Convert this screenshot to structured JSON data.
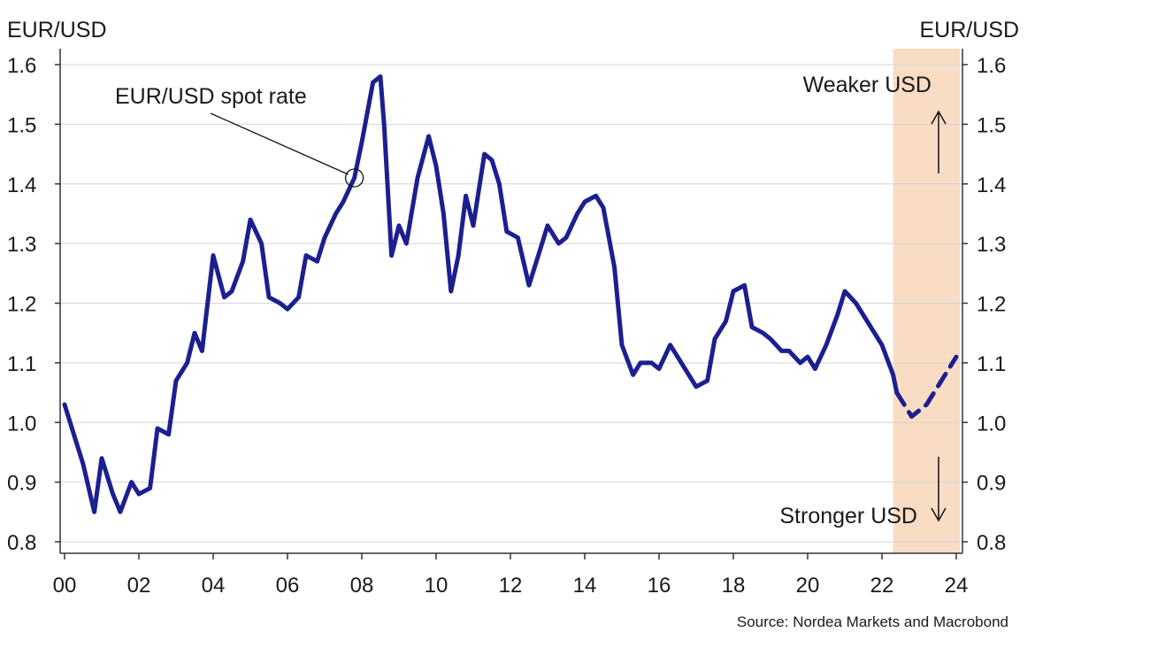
{
  "chart_data": {
    "type": "line",
    "ylabel_left": "EUR/USD",
    "ylabel_right": "EUR/USD",
    "ylim": [
      0.78,
      1.6
    ],
    "xlim": [
      2000,
      2024.1
    ],
    "y_ticks": [
      "0.8",
      "0.9",
      "1.0",
      "1.1",
      "1.2",
      "1.3",
      "1.4",
      "1.5",
      "1.6"
    ],
    "x_ticks": [
      "00",
      "02",
      "04",
      "06",
      "08",
      "10",
      "12",
      "14",
      "16",
      "18",
      "20",
      "22",
      "24"
    ],
    "grid": "horizontal",
    "forecast_shading": {
      "from": 2022.3,
      "to": 2024.1,
      "color": "#f8dcc4"
    },
    "series": [
      {
        "name": "EUR/USD spot rate",
        "style": "solid",
        "color": "#1c1f8f",
        "points": [
          [
            2000.0,
            1.03
          ],
          [
            2000.3,
            0.97
          ],
          [
            2000.5,
            0.93
          ],
          [
            2000.8,
            0.85
          ],
          [
            2001.0,
            0.94
          ],
          [
            2001.3,
            0.88
          ],
          [
            2001.5,
            0.85
          ],
          [
            2001.8,
            0.9
          ],
          [
            2002.0,
            0.88
          ],
          [
            2002.3,
            0.89
          ],
          [
            2002.5,
            0.99
          ],
          [
            2002.8,
            0.98
          ],
          [
            2003.0,
            1.07
          ],
          [
            2003.3,
            1.1
          ],
          [
            2003.5,
            1.15
          ],
          [
            2003.7,
            1.12
          ],
          [
            2004.0,
            1.28
          ],
          [
            2004.3,
            1.21
          ],
          [
            2004.5,
            1.22
          ],
          [
            2004.8,
            1.27
          ],
          [
            2005.0,
            1.34
          ],
          [
            2005.3,
            1.3
          ],
          [
            2005.5,
            1.21
          ],
          [
            2005.8,
            1.2
          ],
          [
            2006.0,
            1.19
          ],
          [
            2006.3,
            1.21
          ],
          [
            2006.5,
            1.28
          ],
          [
            2006.8,
            1.27
          ],
          [
            2007.0,
            1.31
          ],
          [
            2007.3,
            1.35
          ],
          [
            2007.5,
            1.37
          ],
          [
            2007.8,
            1.41
          ],
          [
            2008.0,
            1.47
          ],
          [
            2008.3,
            1.57
          ],
          [
            2008.5,
            1.58
          ],
          [
            2008.6,
            1.5
          ],
          [
            2008.8,
            1.28
          ],
          [
            2009.0,
            1.33
          ],
          [
            2009.2,
            1.3
          ],
          [
            2009.5,
            1.41
          ],
          [
            2009.8,
            1.48
          ],
          [
            2010.0,
            1.43
          ],
          [
            2010.2,
            1.35
          ],
          [
            2010.4,
            1.22
          ],
          [
            2010.6,
            1.28
          ],
          [
            2010.8,
            1.38
          ],
          [
            2011.0,
            1.33
          ],
          [
            2011.3,
            1.45
          ],
          [
            2011.5,
            1.44
          ],
          [
            2011.7,
            1.4
          ],
          [
            2011.9,
            1.32
          ],
          [
            2012.2,
            1.31
          ],
          [
            2012.5,
            1.23
          ],
          [
            2012.8,
            1.29
          ],
          [
            2013.0,
            1.33
          ],
          [
            2013.3,
            1.3
          ],
          [
            2013.5,
            1.31
          ],
          [
            2013.8,
            1.35
          ],
          [
            2014.0,
            1.37
          ],
          [
            2014.3,
            1.38
          ],
          [
            2014.5,
            1.36
          ],
          [
            2014.8,
            1.26
          ],
          [
            2015.0,
            1.13
          ],
          [
            2015.3,
            1.08
          ],
          [
            2015.5,
            1.1
          ],
          [
            2015.8,
            1.1
          ],
          [
            2016.0,
            1.09
          ],
          [
            2016.3,
            1.13
          ],
          [
            2016.5,
            1.11
          ],
          [
            2016.8,
            1.08
          ],
          [
            2017.0,
            1.06
          ],
          [
            2017.3,
            1.07
          ],
          [
            2017.5,
            1.14
          ],
          [
            2017.8,
            1.17
          ],
          [
            2018.0,
            1.22
          ],
          [
            2018.3,
            1.23
          ],
          [
            2018.5,
            1.16
          ],
          [
            2018.8,
            1.15
          ],
          [
            2019.0,
            1.14
          ],
          [
            2019.3,
            1.12
          ],
          [
            2019.5,
            1.12
          ],
          [
            2019.8,
            1.1
          ],
          [
            2020.0,
            1.11
          ],
          [
            2020.2,
            1.09
          ],
          [
            2020.5,
            1.13
          ],
          [
            2020.8,
            1.18
          ],
          [
            2021.0,
            1.22
          ],
          [
            2021.3,
            1.2
          ],
          [
            2021.5,
            1.18
          ],
          [
            2021.8,
            1.15
          ],
          [
            2022.0,
            1.13
          ],
          [
            2022.3,
            1.08
          ],
          [
            2022.4,
            1.05
          ]
        ]
      },
      {
        "name": "forecast",
        "style": "dashed",
        "color": "#1c1f8f",
        "points": [
          [
            2022.4,
            1.05
          ],
          [
            2022.8,
            1.01
          ],
          [
            2023.2,
            1.03
          ],
          [
            2023.6,
            1.07
          ],
          [
            2024.0,
            1.11
          ]
        ]
      }
    ],
    "annotations": {
      "spot_label": "EUR/USD spot rate",
      "spot_point": [
        2007.8,
        1.41
      ],
      "weaker": "Weaker USD",
      "stronger": "Stronger USD"
    },
    "source": "Source: Nordea Markets and Macrobond"
  }
}
